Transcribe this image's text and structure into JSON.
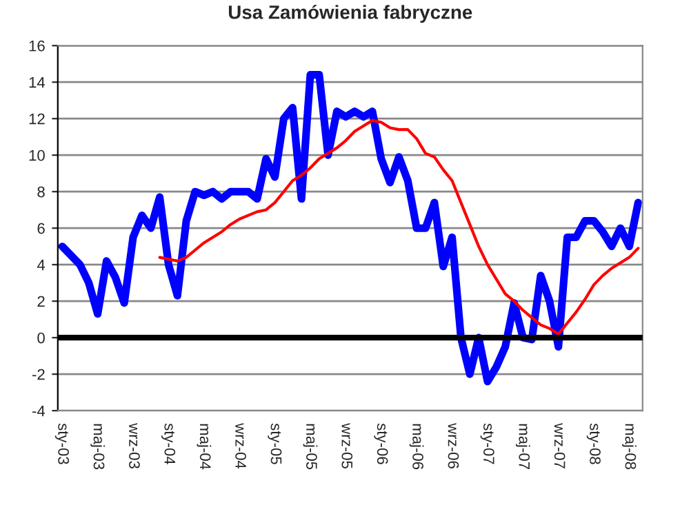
{
  "chart_data": {
    "type": "line",
    "title": "Usa Zamówienia fabryczne",
    "categories": [
      "sty-03",
      null,
      null,
      null,
      "maj-03",
      null,
      null,
      null,
      "wrz-03",
      null,
      null,
      null,
      "sty-04",
      null,
      null,
      null,
      "maj-04",
      null,
      null,
      null,
      "wrz-04",
      null,
      null,
      null,
      "sty-05",
      null,
      null,
      null,
      "maj-05",
      null,
      null,
      null,
      "wrz-05",
      null,
      null,
      null,
      "sty-06",
      null,
      null,
      null,
      "maj-06",
      null,
      null,
      null,
      "wrz-06",
      null,
      null,
      null,
      "sty-07",
      null,
      null,
      null,
      "maj-07",
      null,
      null,
      null,
      "wrz-07",
      null,
      null,
      null,
      "sty-08",
      null,
      null,
      null,
      "maj-08",
      null
    ],
    "series": [
      {
        "color": "#0000ff",
        "values": [
          5.0,
          4.5,
          4.0,
          3.0,
          1.3,
          4.2,
          3.3,
          1.9,
          5.5,
          6.7,
          6.0,
          7.7,
          4.0,
          2.3,
          6.4,
          8.0,
          7.8,
          8.0,
          7.6,
          8.0,
          8.0,
          8.0,
          7.6,
          9.8,
          8.8,
          12.0,
          12.6,
          7.6,
          14.4,
          14.4,
          10.0,
          12.4,
          12.1,
          12.4,
          12.1,
          12.4,
          9.8,
          8.5,
          9.9,
          8.6,
          6.0,
          6.0,
          7.4,
          3.9,
          5.5,
          0.0,
          -2.0,
          0.0,
          -2.4,
          -1.6,
          -0.5,
          1.9,
          0.0,
          -0.1,
          3.4,
          2.0,
          -0.5,
          5.5,
          5.5,
          6.4,
          6.4,
          5.8,
          5.0,
          6.0,
          5.0,
          7.4
        ]
      },
      {
        "color": "#ff0000",
        "values": [
          null,
          null,
          null,
          null,
          null,
          null,
          null,
          null,
          null,
          null,
          null,
          4.4,
          4.3,
          4.2,
          4.4,
          4.8,
          5.2,
          5.5,
          5.8,
          6.2,
          6.5,
          6.7,
          6.9,
          7.0,
          7.4,
          8.0,
          8.6,
          8.9,
          9.3,
          9.8,
          10.1,
          10.4,
          10.8,
          11.3,
          11.6,
          11.9,
          11.8,
          11.5,
          11.4,
          11.4,
          10.9,
          10.1,
          9.9,
          9.2,
          8.6,
          7.4,
          6.2,
          5.0,
          4.0,
          3.2,
          2.4,
          2.0,
          1.5,
          1.1,
          0.7,
          0.5,
          0.2,
          0.8,
          1.4,
          2.1,
          2.9,
          3.4,
          3.8,
          4.1,
          4.4,
          4.9
        ]
      }
    ],
    "ylim": [
      -4,
      16
    ],
    "yticks": [
      -4,
      -2,
      0,
      2,
      4,
      6,
      8,
      10,
      12,
      14,
      16
    ],
    "grid": "y",
    "ref_lines": [
      {
        "axis": "y",
        "value": 0,
        "color": "#000000"
      }
    ],
    "line_style": "solid",
    "marker": "none",
    "legend": false
  }
}
